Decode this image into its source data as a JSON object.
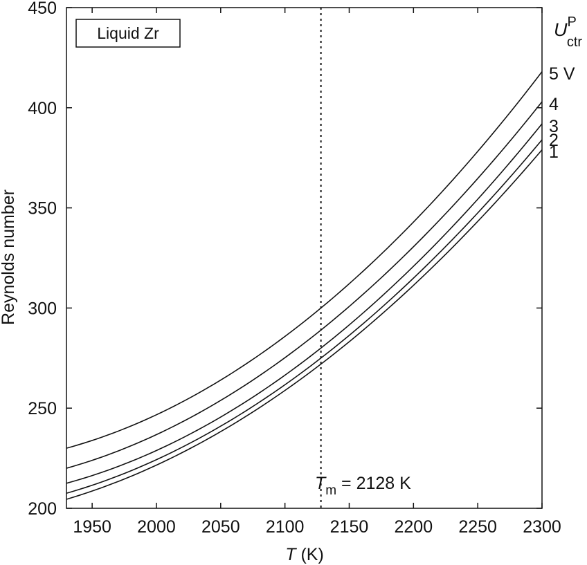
{
  "chart_data": {
    "type": "line",
    "title": "",
    "xlabel": {
      "var": "T",
      "unit": " (K)"
    },
    "ylabel": "Reynolds number",
    "xlim": [
      1930,
      2300
    ],
    "ylim": [
      200,
      450
    ],
    "xticks": [
      1950,
      2000,
      2050,
      2100,
      2150,
      2200,
      2250,
      2300
    ],
    "yticks": [
      200,
      250,
      300,
      350,
      400,
      450
    ],
    "grid": false,
    "legend": {
      "text": "Liquid Zr",
      "placement": "top-left"
    },
    "right_title": {
      "base": "U",
      "sup": "P",
      "sub": "ctr"
    },
    "melting_point": {
      "x": 2128,
      "base": "T",
      "sub": "m",
      "rest": " = 2128 K"
    },
    "series": [
      {
        "name": "5 V",
        "values": [
          230,
          300,
          418
        ]
      },
      {
        "name": "4",
        "values": [
          220,
          289,
          403
        ]
      },
      {
        "name": "3",
        "values": [
          212.5,
          280,
          392
        ]
      },
      {
        "name": "2",
        "values": [
          207.5,
          275,
          384
        ]
      },
      {
        "name": "1",
        "values": [
          204.5,
          272,
          379
        ]
      }
    ],
    "x": [
      1930,
      2128,
      2300
    ]
  }
}
